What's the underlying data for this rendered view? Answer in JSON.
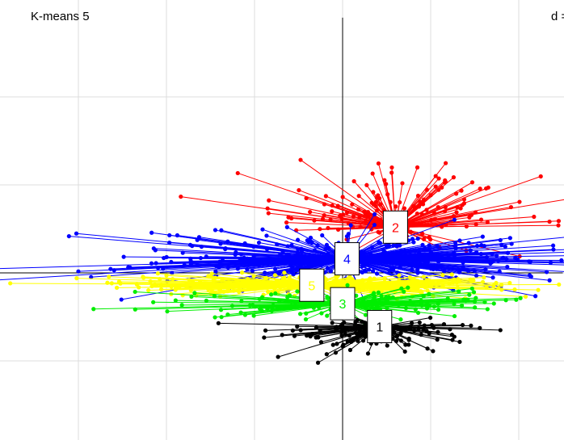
{
  "title": "K-means 5",
  "d_label": "d =",
  "chart_data": {
    "type": "scatter",
    "title": "K-means 5",
    "grid": true,
    "axes_through_origin": true,
    "xlim": [
      -3.9,
      2.5
    ],
    "ylim": [
      -1.9,
      2.9
    ],
    "clusters": [
      {
        "label": "1",
        "color": "#000000",
        "center": [
          0.42,
          -0.61
        ],
        "spread": [
          0.55,
          0.14
        ],
        "n": 150
      },
      {
        "label": "2",
        "color": "#FF0000",
        "center": [
          0.6,
          0.52
        ],
        "spread": [
          0.7,
          0.3
        ],
        "n": 170
      },
      {
        "label": "3",
        "color": "#00EE00",
        "center": [
          0.0,
          -0.35
        ],
        "spread": [
          0.9,
          0.08
        ],
        "n": 170
      },
      {
        "label": "4",
        "color": "#0000FF",
        "center": [
          0.05,
          0.16
        ],
        "spread": [
          1.2,
          0.16
        ],
        "n": 360
      },
      {
        "label": "5",
        "color": "#FFFF00",
        "center": [
          -0.35,
          -0.14
        ],
        "spread": [
          1.2,
          0.06
        ],
        "n": 300
      }
    ]
  }
}
